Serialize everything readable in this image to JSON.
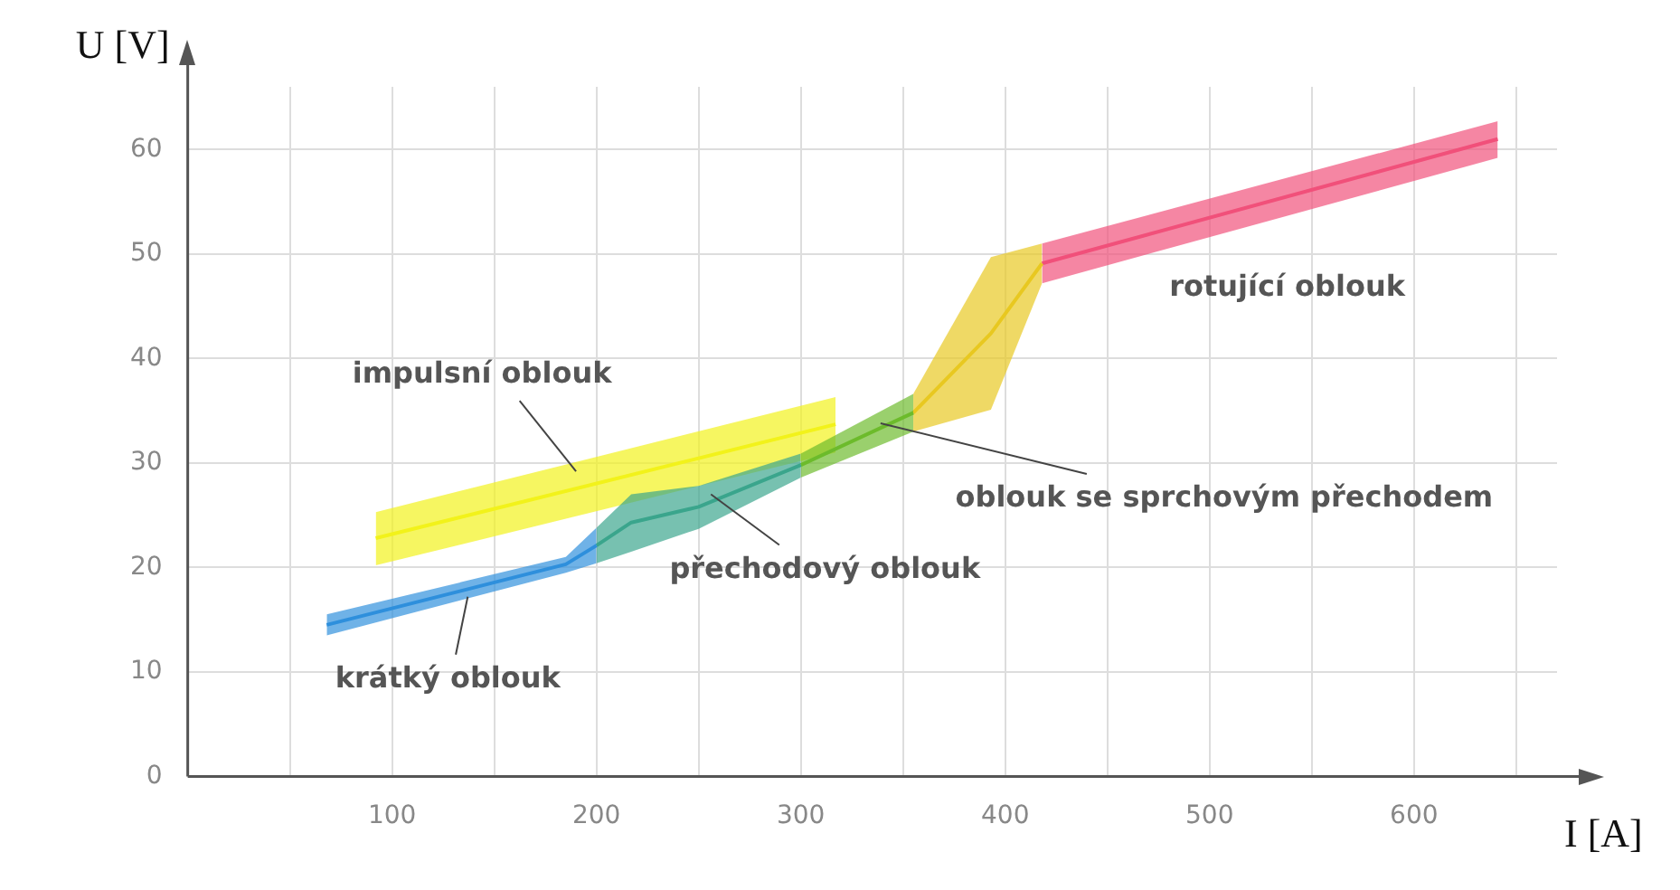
{
  "chart_data": {
    "type": "line",
    "xlabel": "I [A]",
    "ylabel": "U [V]",
    "xlim": [
      0,
      670
    ],
    "ylim": [
      0,
      66
    ],
    "xticks": [
      {
        "value": 50,
        "label": null
      },
      100,
      {
        "value": 150,
        "label": null
      },
      200,
      {
        "value": 250,
        "label": null
      },
      300,
      {
        "value": 350,
        "label": null
      },
      400,
      {
        "value": 450,
        "label": null
      },
      500,
      {
        "value": 550,
        "label": null
      },
      600,
      {
        "value": 650,
        "label": null
      }
    ],
    "yticks": [
      0,
      10,
      20,
      30,
      40,
      50,
      60
    ],
    "grid": true,
    "legend": false,
    "marker": "none",
    "series": [
      {
        "color": "#2f8fdc",
        "x": [
          68,
          185,
          200
        ],
        "values": [
          14.5,
          20.3,
          22.1
        ],
        "lower": [
          13.5,
          19.5,
          20.4
        ],
        "upper": [
          15.5,
          21,
          23.8
        ]
      },
      {
        "color": "#3aa58c",
        "x": [
          200,
          217,
          250,
          300
        ],
        "values": [
          22.1,
          24.3,
          25.8,
          29.8
        ],
        "lower": [
          20.4,
          21.5,
          23.7,
          28.6
        ],
        "upper": [
          23.8,
          27,
          27.8,
          30.9
        ]
      },
      {
        "color": "#6cbb2c",
        "x": [
          300,
          355
        ],
        "values": [
          29.8,
          34.8
        ],
        "lower": [
          28.6,
          33
        ],
        "upper": [
          30.9,
          36.6
        ]
      },
      {
        "color": "#e8c820",
        "x": [
          355,
          393,
          418
        ],
        "values": [
          34.8,
          42.4,
          49.1
        ],
        "lower": [
          33,
          35.1,
          47.2
        ],
        "upper": [
          36.6,
          49.7,
          51
        ]
      },
      {
        "color": "#f0507a",
        "x": [
          418,
          641
        ],
        "values": [
          49.1,
          61
        ],
        "lower": [
          47.2,
          59.2
        ],
        "upper": [
          51,
          62.7
        ]
      },
      {
        "color": "#f2f21a",
        "x": [
          92,
          317
        ],
        "values": [
          22.8,
          33.7
        ],
        "lower": [
          20.2,
          31
        ],
        "upper": [
          25.3,
          36.3
        ]
      }
    ],
    "annotations": [
      {
        "text": "impulsní oblouk",
        "x": 190,
        "y": 29.2
      },
      {
        "text": "krátký oblouk",
        "x": 137,
        "y": 17.2
      },
      {
        "text": "přechodový oblouk",
        "x": 256,
        "y": 27
      },
      {
        "text": "oblouk se sprchovým přechodem",
        "x": 339,
        "y": 33.8
      },
      {
        "text": "rotující oblouk",
        "x": 530,
        "y": 55
      }
    ]
  }
}
